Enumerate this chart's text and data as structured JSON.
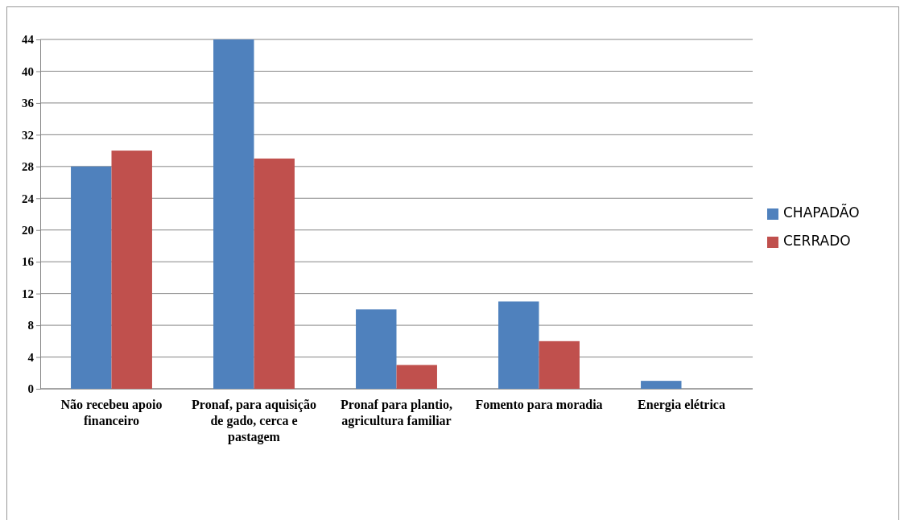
{
  "chart_data": {
    "type": "bar",
    "categories": [
      "Não recebeu apoio financeiro",
      "Pronaf, para aquisição de gado, cerca e pastagem",
      "Pronaf para plantio, agricultura familiar",
      "Fomento para moradia",
      "Energia elétrica"
    ],
    "series": [
      {
        "name": "CHAPADÃO",
        "color": "#4f81bd",
        "values": [
          28,
          44,
          10,
          11,
          1
        ]
      },
      {
        "name": "CERRADO",
        "color": "#c0504d",
        "values": [
          30,
          29,
          3,
          6,
          0
        ]
      }
    ],
    "ylim": [
      0,
      44
    ],
    "yticks": [
      0,
      4,
      8,
      12,
      16,
      20,
      24,
      28,
      32,
      36,
      40,
      44
    ],
    "grid": "y",
    "legend": "right"
  }
}
